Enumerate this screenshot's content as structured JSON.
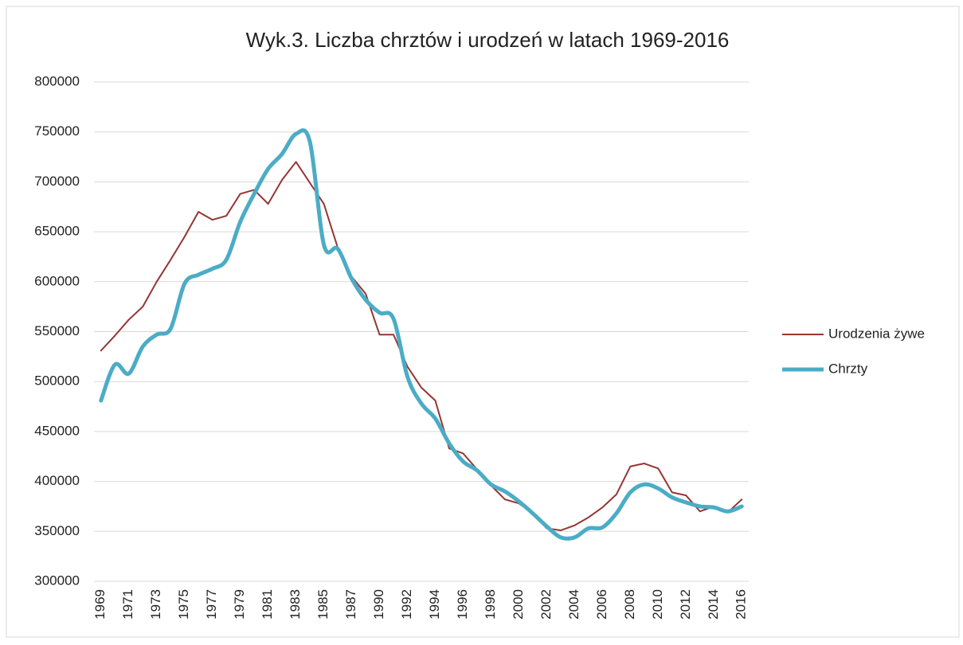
{
  "chart_data": {
    "type": "line",
    "title": "Wyk.3. Liczba chrztów i urodzeń w latach 1969-2016",
    "categories": [
      "1969",
      null,
      "1971",
      null,
      "1973",
      null,
      "1975",
      null,
      "1977",
      null,
      "1979",
      null,
      "1981",
      null,
      "1983",
      null,
      "1985",
      null,
      "1987",
      null,
      "1990",
      null,
      "1992",
      null,
      "1994",
      null,
      "1996",
      null,
      "1998",
      null,
      "2000",
      null,
      "2002",
      null,
      "2004",
      null,
      "2006",
      null,
      "2008",
      null,
      "2010",
      null,
      "2012",
      null,
      "2014",
      null,
      "2016"
    ],
    "series": [
      {
        "name": "Urodzenia żywe",
        "color": "#943634",
        "width": 2,
        "smooth": false,
        "values": [
          531000,
          546000,
          562000,
          575000,
          600000,
          622000,
          645000,
          670000,
          662000,
          666000,
          688000,
          692000,
          678000,
          702000,
          720000,
          699000,
          678000,
          634000,
          605000,
          588000,
          547000,
          547000,
          515000,
          494000,
          481000,
          433000,
          428000,
          412000,
          396000,
          382000,
          378000,
          368000,
          353000,
          351000,
          356000,
          364000,
          374000,
          387000,
          415000,
          418000,
          413000,
          389000,
          386000,
          370000,
          375000,
          369000,
          382000
        ]
      },
      {
        "name": "Chrzty",
        "color": "#4bacc6",
        "width": 5,
        "smooth": true,
        "values": [
          481000,
          517000,
          508000,
          535000,
          547000,
          553000,
          598000,
          607000,
          613000,
          622000,
          660000,
          688000,
          713000,
          728000,
          748000,
          740000,
          637000,
          633000,
          603000,
          582000,
          569000,
          563000,
          505000,
          478000,
          463000,
          438000,
          420000,
          411000,
          397000,
          390000,
          380000,
          368000,
          355000,
          344000,
          344000,
          353000,
          354000,
          368000,
          389000,
          397000,
          393000,
          384000,
          379000,
          375000,
          374000,
          370000,
          375000
        ]
      }
    ],
    "ylim": [
      300000,
      800000
    ],
    "yticks": [
      300000,
      350000,
      400000,
      450000,
      500000,
      550000,
      600000,
      650000,
      700000,
      750000,
      800000
    ],
    "grid": true,
    "legend": "right"
  }
}
